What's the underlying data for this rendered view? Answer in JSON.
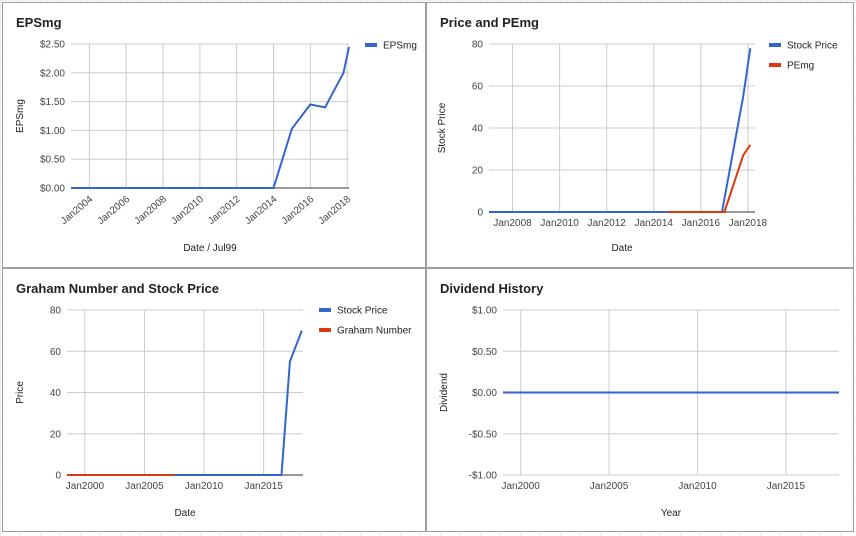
{
  "chart_data": [
    {
      "type": "line",
      "title": "EPSmg",
      "xlabel": "Date / Jul99",
      "ylabel": "EPSmg",
      "x_ticks": [
        "Jan2004",
        "Jan2006",
        "Jan2008",
        "Jan2010",
        "Jan2012",
        "Jan2014",
        "Jan2016",
        "Jan2018"
      ],
      "y_ticks": [
        "$0.00",
        "$0.50",
        "$1.00",
        "$1.50",
        "$2.00",
        "$2.50"
      ],
      "xlim": [
        2003.0,
        2018.1
      ],
      "ylim": [
        0,
        2.5
      ],
      "legend_position": "top-right",
      "grid": true,
      "series": [
        {
          "name": "EPSmg",
          "color": "#3366cc",
          "points": [
            [
              2003.0,
              0
            ],
            [
              2014.0,
              0
            ],
            [
              2015.0,
              1.03
            ],
            [
              2016.0,
              1.45
            ],
            [
              2016.8,
              1.4
            ],
            [
              2017.8,
              2.0
            ],
            [
              2018.1,
              2.45
            ]
          ]
        }
      ]
    },
    {
      "type": "line",
      "title": "Price and PEmg",
      "xlabel": "Date",
      "ylabel": "Stock Price",
      "x_ticks": [
        "Jan2008",
        "Jan2010",
        "Jan2012",
        "Jan2014",
        "Jan2016",
        "Jan2018"
      ],
      "y_ticks": [
        "0",
        "20",
        "40",
        "60",
        "80"
      ],
      "xlim": [
        2007.0,
        2018.3
      ],
      "ylim": [
        0,
        80
      ],
      "legend_position": "top-right",
      "grid": true,
      "series": [
        {
          "name": "Stock Price",
          "color": "#3366cc",
          "points": [
            [
              2007.0,
              0
            ],
            [
              2016.9,
              0
            ],
            [
              2017.8,
              55
            ],
            [
              2018.1,
              78
            ]
          ]
        },
        {
          "name": "PEmg",
          "color": "#dc3912",
          "points": [
            [
              2014.6,
              0
            ],
            [
              2017.0,
              0
            ],
            [
              2017.8,
              27
            ],
            [
              2018.1,
              32
            ]
          ]
        }
      ]
    },
    {
      "type": "line",
      "title": "Graham Number and Stock Price",
      "xlabel": "Date",
      "ylabel": "Price",
      "x_ticks": [
        "Jan2000",
        "Jan2005",
        "Jan2010",
        "Jan2015"
      ],
      "y_ticks": [
        "0",
        "20",
        "40",
        "60",
        "80"
      ],
      "xlim": [
        1998.5,
        2018.3
      ],
      "ylim": [
        0,
        80
      ],
      "legend_position": "top-right",
      "grid": true,
      "series": [
        {
          "name": "Stock Price",
          "color": "#3366cc",
          "points": [
            [
              1998.5,
              0
            ],
            [
              2016.5,
              0
            ],
            [
              2017.2,
              55
            ],
            [
              2018.2,
              70
            ]
          ]
        },
        {
          "name": "Graham Number",
          "color": "#dc3912",
          "points": [
            [
              1998.5,
              0
            ],
            [
              2007.5,
              0
            ]
          ]
        }
      ]
    },
    {
      "type": "line",
      "title": "Dividend History",
      "xlabel": "Year",
      "ylabel": "Dividend",
      "x_ticks": [
        "Jan2000",
        "Jan2005",
        "Jan2010",
        "Jan2015"
      ],
      "y_ticks": [
        "-$1.00",
        "-$0.50",
        "$0.00",
        "$0.50",
        "$1.00"
      ],
      "xlim": [
        1999.0,
        2018.0
      ],
      "ylim": [
        -1,
        1
      ],
      "legend_position": "none",
      "grid": true,
      "series": [
        {
          "color": "#3366cc",
          "points": [
            [
              1999.0,
              0
            ],
            [
              2018.0,
              0
            ]
          ]
        }
      ]
    }
  ]
}
